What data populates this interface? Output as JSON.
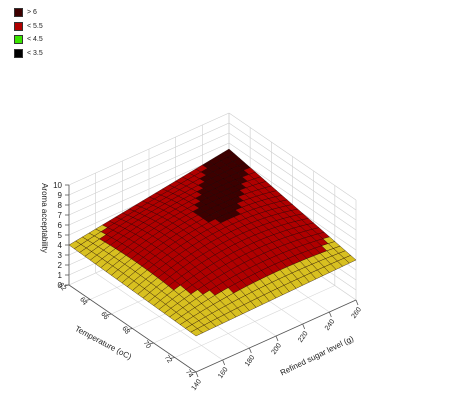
{
  "chart_data": {
    "type": "surface",
    "zlabel": "Aroma acceptability",
    "xlabel": "Refined sugar level (g)",
    "ylabel": "Temperature (oC)",
    "zlim": [
      0,
      10
    ],
    "zticks": [
      "0",
      "1",
      "2",
      "3",
      "4",
      "5",
      "6",
      "7",
      "8",
      "9",
      "10"
    ],
    "xlim": [
      140,
      260
    ],
    "xticks": [
      "140",
      "160",
      "180",
      "200",
      "220",
      "240",
      "260"
    ],
    "ylim": [
      62,
      74
    ],
    "yticks": [
      "62",
      "64",
      "66",
      "68",
      "70",
      "72",
      "74"
    ],
    "surface_corners": [
      {
        "sugar": 140,
        "temperature": 62,
        "aroma": 4.0
      },
      {
        "sugar": 260,
        "temperature": 62,
        "aroma": 6.4
      },
      {
        "sugar": 140,
        "temperature": 74,
        "aroma": 3.6
      },
      {
        "sugar": 260,
        "temperature": 74,
        "aroma": 4.0
      },
      {
        "sugar": 200,
        "temperature": 68,
        "aroma": 6.0
      }
    ],
    "legend": [
      {
        "label": "> 6",
        "color": "#3d0000"
      },
      {
        "label": "< 5.5",
        "color": "#b00000"
      },
      {
        "label": "< 4.5",
        "color": "#39e400"
      },
      {
        "label": "< 3.5",
        "color": "#000000"
      }
    ],
    "grid": true,
    "legend_position": "top-left"
  }
}
